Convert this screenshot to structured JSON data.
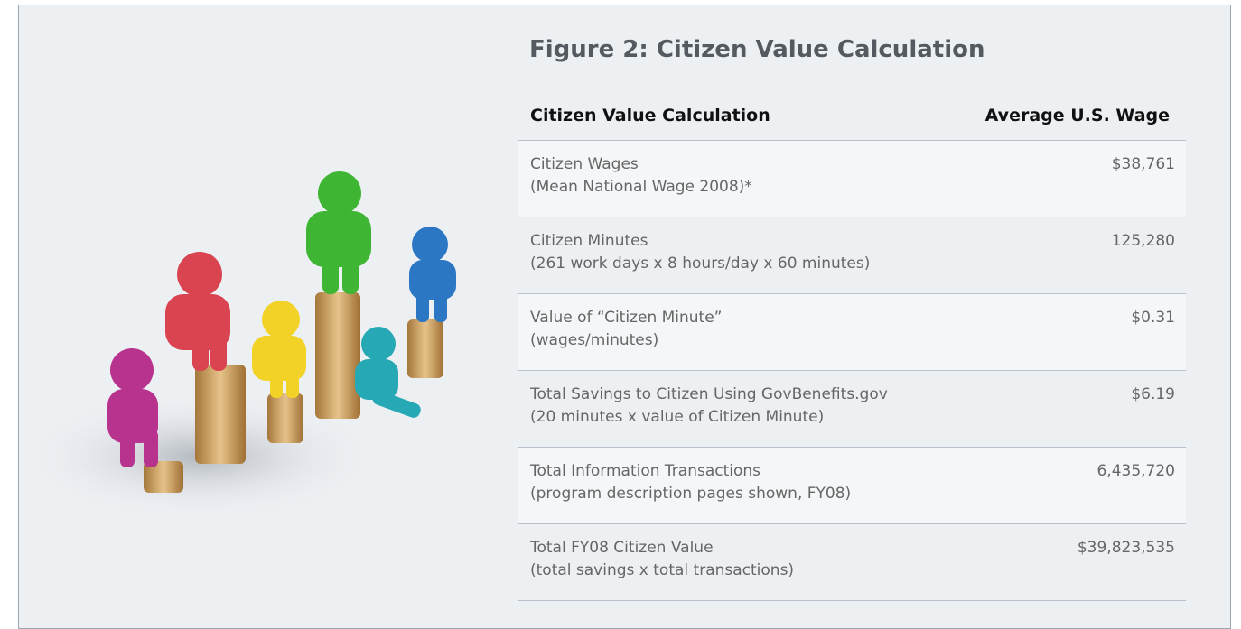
{
  "figure": {
    "title": "Figure 2: Citizen Value Calculation",
    "table": {
      "headers": [
        "Citizen Value Calculation",
        "Average U.S. Wage"
      ],
      "rows": [
        {
          "label": "Citizen Wages",
          "note": "(Mean National Wage 2008)*",
          "value": "$38,761"
        },
        {
          "label": "Citizen Minutes",
          "note": "(261 work days x 8 hours/day x 60 minutes)",
          "value": "125,280"
        },
        {
          "label": "Value of “Citizen Minute”",
          "note": "(wages/minutes)",
          "value": "$0.31"
        },
        {
          "label": "Total Savings to Citizen Using GovBenefits.gov",
          "note": "(20 minutes x value of Citizen Minute)",
          "value": "$6.19"
        },
        {
          "label": "Total Information Transactions",
          "note": "(program description pages shown, FY08)",
          "value": "6,435,720"
        },
        {
          "label": "Total FY08 Citizen Value",
          "note": "(total savings x total transactions)",
          "value": "$39,823,535"
        }
      ]
    }
  }
}
